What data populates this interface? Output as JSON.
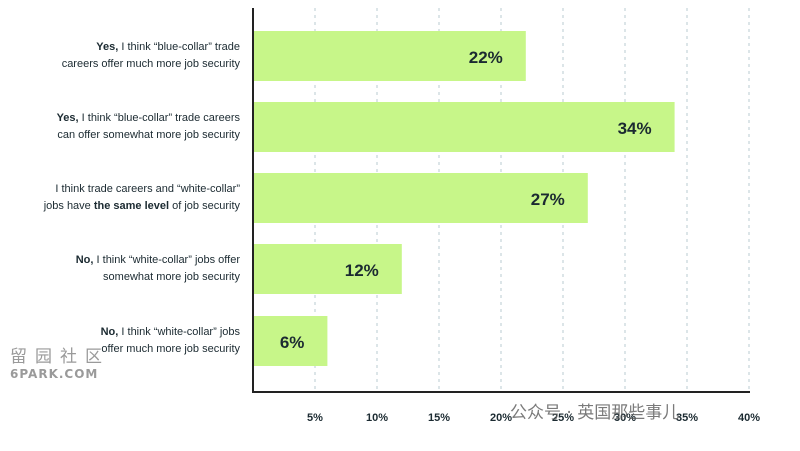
{
  "chart_data": {
    "type": "bar",
    "orientation": "horizontal",
    "categories": [
      [
        {
          "text": "Yes,",
          "bold": true
        },
        {
          "text": " I think “blue-collar” trade",
          "bold": false
        },
        {
          "br": true
        },
        {
          "text": "careers offer much more job security",
          "bold": false
        }
      ],
      [
        {
          "text": "Yes,",
          "bold": true
        },
        {
          "text": " I think “blue-collar” trade careers",
          "bold": false
        },
        {
          "br": true
        },
        {
          "text": "can offer somewhat more job security",
          "bold": false
        }
      ],
      [
        {
          "text": "I think trade careers and “white-collar”",
          "bold": false
        },
        {
          "br": true
        },
        {
          "text": "jobs have ",
          "bold": false
        },
        {
          "text": "the same level",
          "bold": true
        },
        {
          "text": " of job security",
          "bold": false
        }
      ],
      [
        {
          "text": "No,",
          "bold": true
        },
        {
          "text": " I think “white-collar” jobs offer",
          "bold": false
        },
        {
          "br": true
        },
        {
          "text": "somewhat more job security",
          "bold": false
        }
      ],
      [
        {
          "text": "No,",
          "bold": true
        },
        {
          "text": " I think “white-collar” jobs",
          "bold": false
        },
        {
          "br": true
        },
        {
          "text": "offer much more job security",
          "bold": false
        }
      ]
    ],
    "values": [
      22,
      34,
      27,
      12,
      6
    ],
    "value_labels": [
      "22%",
      "34%",
      "27%",
      "12%",
      "6%"
    ],
    "xlim": [
      0,
      40
    ],
    "ticks": [
      5,
      10,
      15,
      20,
      25,
      30,
      35,
      40
    ],
    "tick_labels": [
      "5%",
      "10%",
      "15%",
      "20%",
      "25%",
      "30%",
      "35%",
      "40%"
    ],
    "grid": "vertical dotted",
    "colors": {
      "bar": "#c7f689",
      "label": "#1b2a31",
      "axis": "#222222",
      "grid": "#b9cbd2"
    }
  },
  "watermarks": {
    "left_big": "留园社区",
    "left_small": "6PARK.COM",
    "right": "公众号 · 英国那些事儿"
  }
}
